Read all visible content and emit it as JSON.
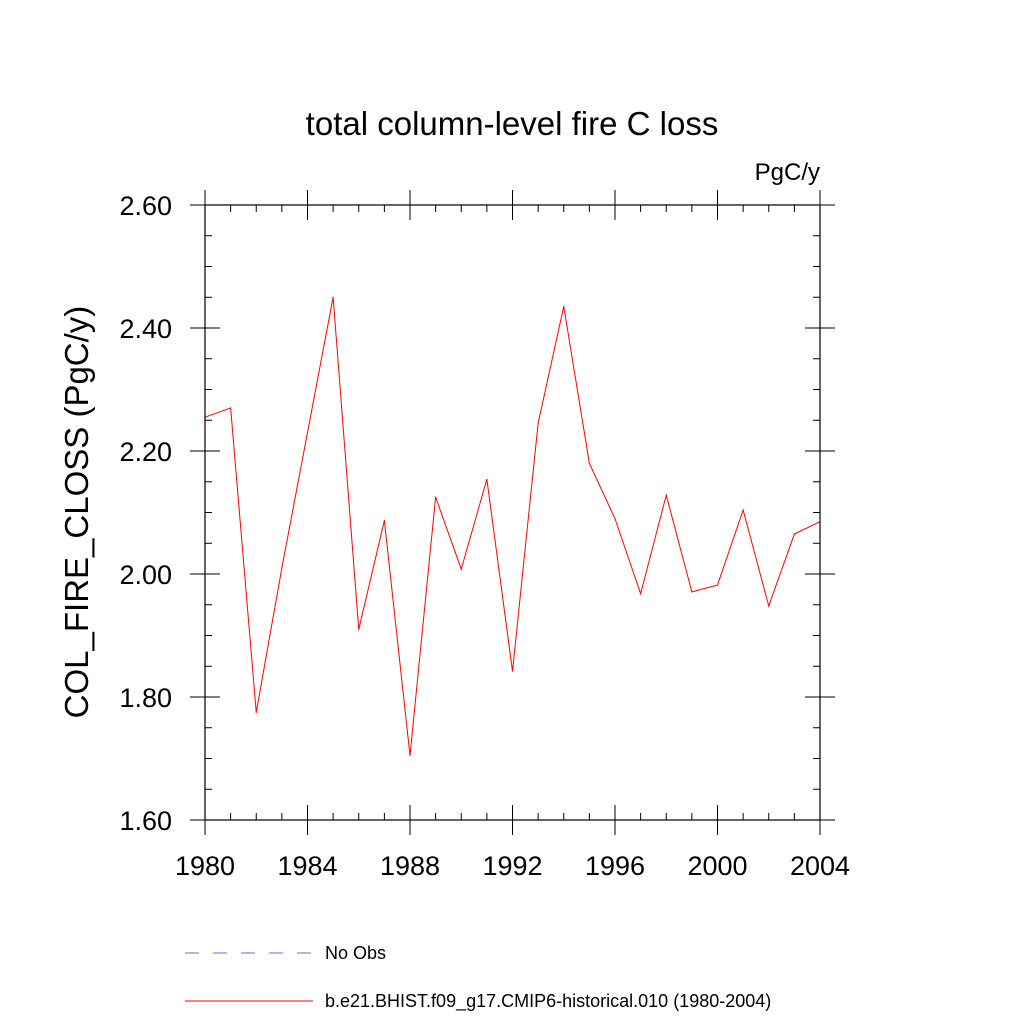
{
  "chart_data": {
    "type": "line",
    "title": "total column-level fire C loss",
    "units_label": "PgC/y",
    "ylabel": "COL_FIRE_CLOSS  (PgC/y)",
    "xlabel": "",
    "xlim": [
      1980,
      2004
    ],
    "ylim": [
      1.6,
      2.6
    ],
    "x_ticks": [
      1980,
      1984,
      1988,
      1992,
      1996,
      2000,
      2004
    ],
    "y_ticks": [
      1.6,
      1.8,
      2.0,
      2.2,
      2.4,
      2.6
    ],
    "y_tick_labels": [
      "1.60",
      "1.80",
      "2.00",
      "2.20",
      "2.40",
      "2.60"
    ],
    "x_tick_labels": [
      "1980",
      "1984",
      "1988",
      "1992",
      "1996",
      "2000",
      "2004"
    ],
    "grid": false,
    "legend_position": "bottom",
    "series": [
      {
        "name": "No Obs",
        "color": "#6a6ad0",
        "style": "dashed",
        "x": [],
        "values": []
      },
      {
        "name": "b.e21.BHIST.f09_g17.CMIP6-historical.010 (1980-2004)",
        "color": "#ff0000",
        "style": "solid",
        "x": [
          1980,
          1981,
          1982,
          1983,
          1984,
          1985,
          1986,
          1987,
          1988,
          1989,
          1990,
          1991,
          1992,
          1993,
          1994,
          1995,
          1996,
          1997,
          1998,
          1999,
          2000,
          2001,
          2002,
          2003,
          2004
        ],
        "values": [
          2.255,
          2.27,
          1.775,
          2.01,
          2.23,
          2.45,
          1.91,
          2.087,
          1.705,
          2.125,
          2.008,
          2.154,
          1.842,
          2.245,
          2.435,
          2.18,
          2.09,
          1.968,
          2.128,
          1.971,
          1.982,
          2.104,
          1.948,
          2.065,
          2.085
        ]
      }
    ]
  }
}
